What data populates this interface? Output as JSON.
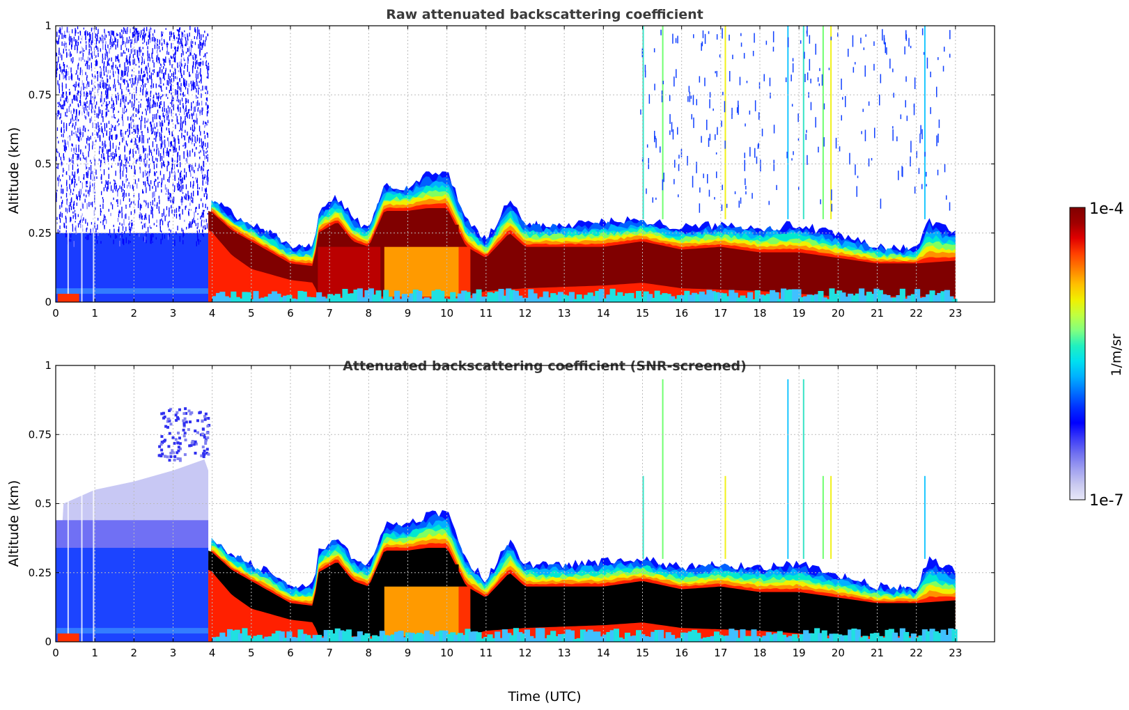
{
  "chart_data": [
    {
      "type": "heatmap",
      "title": "Raw attenuated backscattering coefficient",
      "xlabel": "",
      "ylabel": "Altitude (km)",
      "xlim": [
        0,
        24
      ],
      "ylim": [
        0,
        1
      ],
      "x_ticks": [
        "0",
        "1",
        "2",
        "3",
        "4",
        "5",
        "6",
        "7",
        "8",
        "9",
        "10",
        "11",
        "12",
        "13",
        "14",
        "15",
        "16",
        "17",
        "18",
        "19",
        "20",
        "21",
        "22",
        "23"
      ],
      "y_ticks": [
        "0",
        "0.25",
        "0.5",
        "0.75",
        "1"
      ],
      "grid": true,
      "data_extent_hours": [
        0,
        23
      ],
      "layer_top_km": [
        {
          "t": 0.0,
          "z": 0.03
        },
        {
          "t": 3.9,
          "z": 0.04
        },
        {
          "t": 3.95,
          "z": 0.38
        },
        {
          "t": 4.5,
          "z": 0.32
        },
        {
          "t": 5.0,
          "z": 0.28
        },
        {
          "t": 5.5,
          "z": 0.25
        },
        {
          "t": 6.0,
          "z": 0.2
        },
        {
          "t": 6.6,
          "z": 0.2
        },
        {
          "t": 6.7,
          "z": 0.32
        },
        {
          "t": 7.2,
          "z": 0.38
        },
        {
          "t": 7.6,
          "z": 0.3
        },
        {
          "t": 8.0,
          "z": 0.27
        },
        {
          "t": 8.4,
          "z": 0.42
        },
        {
          "t": 9.0,
          "z": 0.42
        },
        {
          "t": 9.5,
          "z": 0.46
        },
        {
          "t": 10.0,
          "z": 0.47
        },
        {
          "t": 10.5,
          "z": 0.3
        },
        {
          "t": 11.0,
          "z": 0.22
        },
        {
          "t": 11.6,
          "z": 0.37
        },
        {
          "t": 12.0,
          "z": 0.28
        },
        {
          "t": 13.0,
          "z": 0.28
        },
        {
          "t": 14.0,
          "z": 0.29
        },
        {
          "t": 15.0,
          "z": 0.3
        },
        {
          "t": 16.0,
          "z": 0.27
        },
        {
          "t": 17.0,
          "z": 0.28
        },
        {
          "t": 18.0,
          "z": 0.27
        },
        {
          "t": 19.0,
          "z": 0.28
        },
        {
          "t": 20.0,
          "z": 0.24
        },
        {
          "t": 21.0,
          "z": 0.2
        },
        {
          "t": 22.0,
          "z": 0.19
        },
        {
          "t": 22.3,
          "z": 0.3
        },
        {
          "t": 23.0,
          "z": 0.25
        }
      ],
      "core_top_km": [
        {
          "t": 3.95,
          "z": 0.33
        },
        {
          "t": 4.5,
          "z": 0.26
        },
        {
          "t": 5.0,
          "z": 0.22
        },
        {
          "t": 5.5,
          "z": 0.18
        },
        {
          "t": 6.0,
          "z": 0.14
        },
        {
          "t": 6.6,
          "z": 0.13
        },
        {
          "t": 6.7,
          "z": 0.25
        },
        {
          "t": 7.2,
          "z": 0.29
        },
        {
          "t": 7.6,
          "z": 0.22
        },
        {
          "t": 8.0,
          "z": 0.2
        },
        {
          "t": 8.4,
          "z": 0.33
        },
        {
          "t": 9.0,
          "z": 0.33
        },
        {
          "t": 9.5,
          "z": 0.34
        },
        {
          "t": 10.0,
          "z": 0.34
        },
        {
          "t": 10.5,
          "z": 0.2
        },
        {
          "t": 11.0,
          "z": 0.16
        },
        {
          "t": 11.6,
          "z": 0.25
        },
        {
          "t": 12.0,
          "z": 0.2
        },
        {
          "t": 13.0,
          "z": 0.2
        },
        {
          "t": 14.0,
          "z": 0.2
        },
        {
          "t": 15.0,
          "z": 0.22
        },
        {
          "t": 16.0,
          "z": 0.19
        },
        {
          "t": 17.0,
          "z": 0.2
        },
        {
          "t": 18.0,
          "z": 0.18
        },
        {
          "t": 19.0,
          "z": 0.18
        },
        {
          "t": 20.0,
          "z": 0.16
        },
        {
          "t": 21.0,
          "z": 0.14
        },
        {
          "t": 22.0,
          "z": 0.14
        },
        {
          "t": 23.0,
          "z": 0.15
        }
      ],
      "core_bottom_km": [
        {
          "t": 3.95,
          "z": 0.26
        },
        {
          "t": 4.5,
          "z": 0.17
        },
        {
          "t": 5.0,
          "z": 0.12
        },
        {
          "t": 6.0,
          "z": 0.08
        },
        {
          "t": 6.6,
          "z": 0.07
        },
        {
          "t": 6.7,
          "z": 0.02
        },
        {
          "t": 8.4,
          "z": 0.02
        },
        {
          "t": 10.5,
          "z": 0.02
        },
        {
          "t": 11.0,
          "z": 0.04
        },
        {
          "t": 12.0,
          "z": 0.05
        },
        {
          "t": 14.0,
          "z": 0.06
        },
        {
          "t": 15.0,
          "z": 0.07
        },
        {
          "t": 16.0,
          "z": 0.05
        },
        {
          "t": 18.0,
          "z": 0.04
        },
        {
          "t": 20.0,
          "z": 0.02
        },
        {
          "t": 23.0,
          "z": 0.02
        }
      ],
      "noise_region_hours": [
        0,
        3.9
      ],
      "core_color": "#800000"
    },
    {
      "type": "heatmap",
      "title": "Attenuated backscattering coefficient (SNR-screened)",
      "xlabel": "Time (UTC)",
      "ylabel": "Altitude (km)",
      "xlim": [
        0,
        24
      ],
      "ylim": [
        0,
        1
      ],
      "x_ticks": [
        "0",
        "1",
        "2",
        "3",
        "4",
        "5",
        "6",
        "7",
        "8",
        "9",
        "10",
        "11",
        "12",
        "13",
        "14",
        "15",
        "16",
        "17",
        "18",
        "19",
        "20",
        "21",
        "22",
        "23"
      ],
      "y_ticks": [
        "0",
        "0.25",
        "0.5",
        "0.75",
        "1"
      ],
      "grid": true,
      "data_extent_hours": [
        0,
        23
      ],
      "noise_region_hours": [
        0,
        3.9
      ],
      "screened_noise_top_km": [
        {
          "t": 0.2,
          "z": 0.5
        },
        {
          "t": 1.0,
          "z": 0.55
        },
        {
          "t": 2.0,
          "z": 0.58
        },
        {
          "t": 3.0,
          "z": 0.62
        },
        {
          "t": 3.8,
          "z": 0.66
        }
      ],
      "elevated_patch": {
        "t_from": 2.6,
        "t_to": 3.9,
        "z_from": 0.66,
        "z_to": 0.85
      },
      "core_color": "#000000"
    }
  ],
  "colorbar": {
    "label": "1/m/sr",
    "max_label": "1e-4",
    "min_label": "1e-7",
    "colors": [
      "#e8e8f8",
      "#c8c8f0",
      "#a0a0f0",
      "#7070f0",
      "#3a3af8",
      "#0000ff",
      "#0030ff",
      "#0070ff",
      "#00b0ff",
      "#00e0f0",
      "#20f0c0",
      "#80ff80",
      "#c0ff40",
      "#f0f000",
      "#ffc000",
      "#ff8000",
      "#ff4000",
      "#e00000",
      "#a00000",
      "#800000"
    ]
  }
}
